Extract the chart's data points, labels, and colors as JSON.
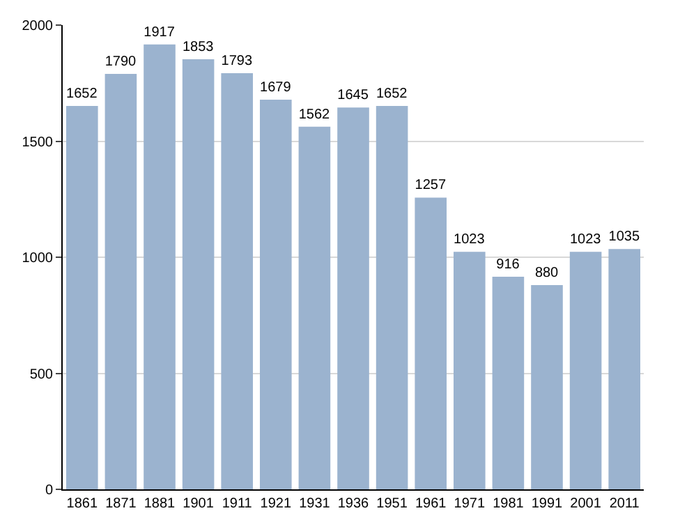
{
  "chart_data": {
    "type": "bar",
    "categories": [
      "1861",
      "1871",
      "1881",
      "1901",
      "1911",
      "1921",
      "1931",
      "1936",
      "1951",
      "1961",
      "1971",
      "1981",
      "1991",
      "2001",
      "2011"
    ],
    "values": [
      1652,
      1790,
      1917,
      1853,
      1793,
      1679,
      1562,
      1645,
      1652,
      1257,
      1023,
      916,
      880,
      1023,
      1035
    ],
    "color": "#9bb3cf",
    "ylim": [
      0,
      2000
    ],
    "yticks": [
      0,
      500,
      1000,
      1500,
      2000
    ],
    "grid": "y",
    "data_labels": true
  }
}
